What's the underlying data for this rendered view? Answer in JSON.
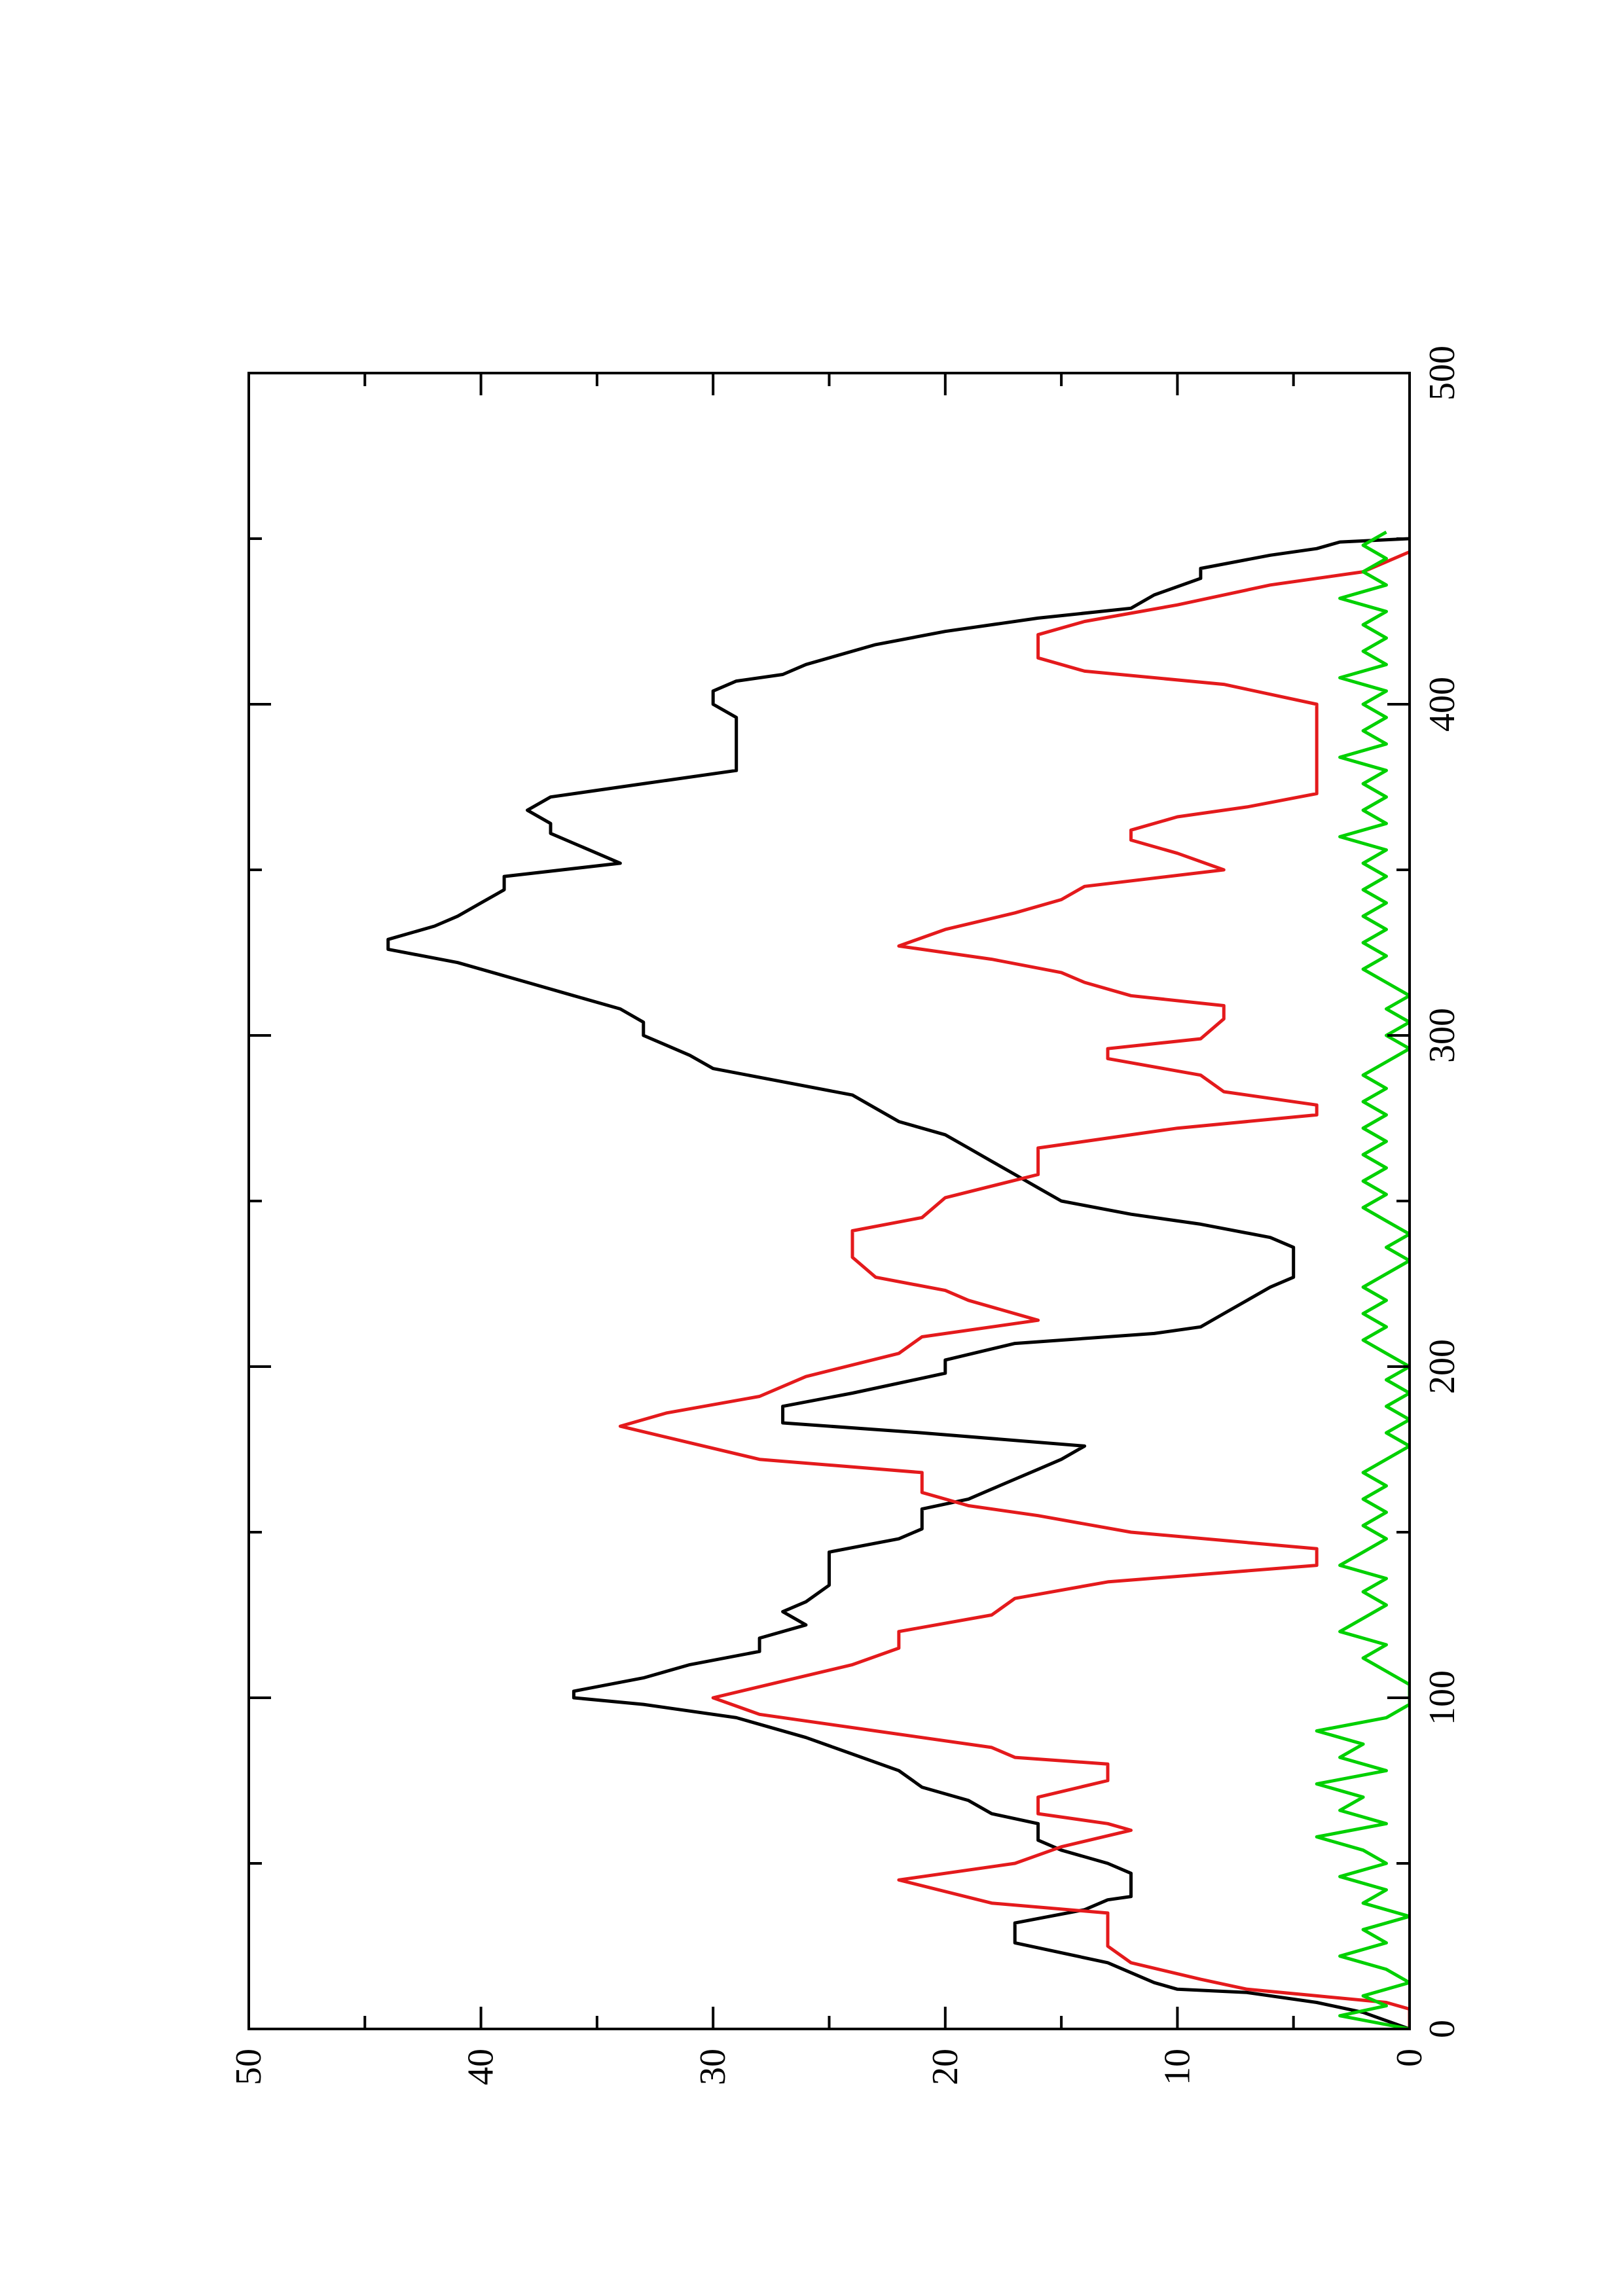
{
  "chart_data": {
    "type": "line",
    "orientation": "rotated-90-ccw",
    "title": "",
    "xlabel": "",
    "ylabel": "",
    "xlim": [
      0,
      500
    ],
    "ylim": [
      0,
      50
    ],
    "xticks_major": [
      0,
      100,
      200,
      300,
      400,
      500
    ],
    "xticks_minor": [
      50,
      150,
      250,
      350,
      450
    ],
    "yticks_major": [
      0,
      10,
      20,
      30,
      40,
      50
    ],
    "yticks_minor": [
      5,
      15,
      25,
      35,
      45
    ],
    "xtick_labels": [
      "0",
      "100",
      "200",
      "300",
      "400",
      "500"
    ],
    "ytick_labels": [
      "0",
      "10",
      "20",
      "30",
      "40",
      "50"
    ],
    "grid": false,
    "legend": "none",
    "series": [
      {
        "color": "#000000",
        "points": [
          [
            0,
            0
          ],
          [
            5,
            2
          ],
          [
            8,
            4
          ],
          [
            11,
            7
          ],
          [
            12,
            10
          ],
          [
            14,
            11
          ],
          [
            20,
            13
          ],
          [
            26,
            17
          ],
          [
            30,
            17
          ],
          [
            32,
            17
          ],
          [
            36,
            14
          ],
          [
            39,
            13
          ],
          [
            40,
            12
          ],
          [
            44,
            12
          ],
          [
            47,
            12
          ],
          [
            50,
            13
          ],
          [
            54,
            15
          ],
          [
            57,
            16
          ],
          [
            60,
            16
          ],
          [
            62,
            16
          ],
          [
            65,
            18
          ],
          [
            69,
            19
          ],
          [
            73,
            21
          ],
          [
            78,
            22
          ],
          [
            83,
            24
          ],
          [
            88,
            26
          ],
          [
            94,
            29
          ],
          [
            98,
            33
          ],
          [
            100,
            36
          ],
          [
            102,
            36
          ],
          [
            106,
            33
          ],
          [
            110,
            31
          ],
          [
            114,
            28
          ],
          [
            118,
            28
          ],
          [
            122,
            26
          ],
          [
            126,
            27
          ],
          [
            129,
            26
          ],
          [
            134,
            25
          ],
          [
            138,
            25
          ],
          [
            144,
            25
          ],
          [
            148,
            22
          ],
          [
            151,
            21
          ],
          [
            154,
            21
          ],
          [
            157,
            21
          ],
          [
            160,
            19
          ],
          [
            163,
            18
          ],
          [
            166,
            17
          ],
          [
            169,
            16
          ],
          [
            172,
            15
          ],
          [
            176,
            14
          ],
          [
            180,
            21
          ],
          [
            183,
            27
          ],
          [
            185,
            27
          ],
          [
            188,
            27
          ],
          [
            192,
            24
          ],
          [
            198,
            20
          ],
          [
            202,
            20
          ],
          [
            207,
            17
          ],
          [
            210,
            11
          ],
          [
            212,
            9
          ],
          [
            216,
            8
          ],
          [
            220,
            7
          ],
          [
            224,
            6
          ],
          [
            227,
            5
          ],
          [
            232,
            5
          ],
          [
            236,
            5
          ],
          [
            239,
            6
          ],
          [
            243,
            9
          ],
          [
            246,
            12
          ],
          [
            250,
            15
          ],
          [
            254,
            16
          ],
          [
            258,
            17
          ],
          [
            262,
            18
          ],
          [
            266,
            19
          ],
          [
            270,
            20
          ],
          [
            274,
            22
          ],
          [
            278,
            23
          ],
          [
            282,
            24
          ],
          [
            286,
            27
          ],
          [
            290,
            30
          ],
          [
            294,
            31
          ],
          [
            297,
            32
          ],
          [
            300,
            33
          ],
          [
            304,
            33
          ],
          [
            308,
            34
          ],
          [
            312,
            36
          ],
          [
            316,
            38
          ],
          [
            322,
            41
          ],
          [
            326,
            44
          ],
          [
            329,
            44
          ],
          [
            333,
            42
          ],
          [
            336,
            41
          ],
          [
            340,
            40
          ],
          [
            344,
            39
          ],
          [
            348,
            39
          ],
          [
            352,
            34
          ],
          [
            355,
            35
          ],
          [
            358,
            36
          ],
          [
            361,
            37
          ],
          [
            364,
            37
          ],
          [
            368,
            38
          ],
          [
            372,
            37
          ],
          [
            376,
            33
          ],
          [
            380,
            29
          ],
          [
            384,
            29
          ],
          [
            388,
            29
          ],
          [
            392,
            29
          ],
          [
            396,
            29
          ],
          [
            400,
            30
          ],
          [
            404,
            30
          ],
          [
            407,
            29
          ],
          [
            409,
            27
          ],
          [
            412,
            26
          ],
          [
            418,
            23
          ],
          [
            422,
            20
          ],
          [
            426,
            16
          ],
          [
            429,
            12
          ],
          [
            433,
            11
          ],
          [
            438,
            9
          ],
          [
            441,
            9
          ],
          [
            445,
            6
          ],
          [
            447,
            4
          ],
          [
            449,
            3
          ],
          [
            450,
            0
          ]
        ]
      },
      {
        "color": "#e41a1c",
        "points": [
          [
            0,
            0
          ],
          [
            6,
            0
          ],
          [
            8,
            1
          ],
          [
            10,
            4
          ],
          [
            12,
            7
          ],
          [
            15,
            9
          ],
          [
            20,
            12
          ],
          [
            25,
            13
          ],
          [
            30,
            13
          ],
          [
            35,
            13
          ],
          [
            38,
            18
          ],
          [
            45,
            22
          ],
          [
            50,
            17
          ],
          [
            55,
            15
          ],
          [
            60,
            12
          ],
          [
            62,
            13
          ],
          [
            65,
            16
          ],
          [
            70,
            16
          ],
          [
            75,
            13
          ],
          [
            80,
            13
          ],
          [
            82,
            17
          ],
          [
            85,
            18
          ],
          [
            90,
            23
          ],
          [
            95,
            28
          ],
          [
            100,
            30
          ],
          [
            105,
            27
          ],
          [
            110,
            24
          ],
          [
            115,
            22
          ],
          [
            120,
            22
          ],
          [
            125,
            18
          ],
          [
            130,
            17
          ],
          [
            135,
            13
          ],
          [
            140,
            4
          ],
          [
            145,
            4
          ],
          [
            150,
            12
          ],
          [
            155,
            16
          ],
          [
            158,
            19
          ],
          [
            162,
            21
          ],
          [
            168,
            21
          ],
          [
            172,
            28
          ],
          [
            182,
            34
          ],
          [
            186,
            32
          ],
          [
            191,
            28
          ],
          [
            197,
            26
          ],
          [
            204,
            22
          ],
          [
            209,
            21
          ],
          [
            214,
            16
          ],
          [
            220,
            19
          ],
          [
            223,
            20
          ],
          [
            227,
            23
          ],
          [
            233,
            24
          ],
          [
            241,
            24
          ],
          [
            245,
            21
          ],
          [
            251,
            20
          ],
          [
            258,
            16
          ],
          [
            266,
            16
          ],
          [
            272,
            10
          ],
          [
            276,
            4
          ],
          [
            279,
            4
          ],
          [
            283,
            8
          ],
          [
            288,
            9
          ],
          [
            293,
            13
          ],
          [
            296,
            13
          ],
          [
            299,
            9
          ],
          [
            305,
            8
          ],
          [
            309,
            8
          ],
          [
            312,
            12
          ],
          [
            316,
            14
          ],
          [
            319,
            15
          ],
          [
            323,
            18
          ],
          [
            327,
            22
          ],
          [
            332,
            20
          ],
          [
            337,
            17
          ],
          [
            341,
            15
          ],
          [
            345,
            14
          ],
          [
            350,
            8
          ],
          [
            355,
            10
          ],
          [
            359,
            12
          ],
          [
            362,
            12
          ],
          [
            366,
            10
          ],
          [
            369,
            7
          ],
          [
            373,
            4
          ],
          [
            381,
            4
          ],
          [
            400,
            4
          ],
          [
            406,
            8
          ],
          [
            410,
            14
          ],
          [
            414,
            16
          ],
          [
            421,
            16
          ],
          [
            425,
            14
          ],
          [
            430,
            10
          ],
          [
            436,
            6
          ],
          [
            440,
            2
          ],
          [
            446,
            0
          ]
        ]
      },
      {
        "color": "#00d000",
        "points": [
          [
            0,
            0
          ],
          [
            4,
            3
          ],
          [
            7,
            1
          ],
          [
            10,
            2
          ],
          [
            14,
            0
          ],
          [
            18,
            1
          ],
          [
            22,
            3
          ],
          [
            26,
            1
          ],
          [
            30,
            2
          ],
          [
            34,
            0
          ],
          [
            38,
            2
          ],
          [
            42,
            1
          ],
          [
            46,
            3
          ],
          [
            50,
            1
          ],
          [
            54,
            2
          ],
          [
            58,
            4
          ],
          [
            62,
            1
          ],
          [
            66,
            3
          ],
          [
            70,
            2
          ],
          [
            74,
            4
          ],
          [
            78,
            1
          ],
          [
            82,
            3
          ],
          [
            86,
            2
          ],
          [
            90,
            4
          ],
          [
            94,
            1
          ],
          [
            98,
            0
          ],
          [
            104,
            0
          ],
          [
            108,
            1
          ],
          [
            112,
            2
          ],
          [
            116,
            1
          ],
          [
            120,
            3
          ],
          [
            124,
            2
          ],
          [
            128,
            1
          ],
          [
            132,
            2
          ],
          [
            136,
            1
          ],
          [
            140,
            3
          ],
          [
            144,
            2
          ],
          [
            148,
            1
          ],
          [
            152,
            2
          ],
          [
            156,
            1
          ],
          [
            160,
            2
          ],
          [
            164,
            1
          ],
          [
            168,
            2
          ],
          [
            172,
            1
          ],
          [
            176,
            0
          ],
          [
            180,
            1
          ],
          [
            184,
            0
          ],
          [
            188,
            1
          ],
          [
            192,
            0
          ],
          [
            196,
            1
          ],
          [
            200,
            0
          ],
          [
            204,
            1
          ],
          [
            208,
            2
          ],
          [
            212,
            1
          ],
          [
            216,
            2
          ],
          [
            220,
            1
          ],
          [
            224,
            2
          ],
          [
            228,
            1
          ],
          [
            232,
            0
          ],
          [
            236,
            1
          ],
          [
            240,
            0
          ],
          [
            244,
            1
          ],
          [
            248,
            2
          ],
          [
            252,
            1
          ],
          [
            256,
            2
          ],
          [
            260,
            1
          ],
          [
            264,
            2
          ],
          [
            268,
            1
          ],
          [
            272,
            2
          ],
          [
            276,
            1
          ],
          [
            280,
            2
          ],
          [
            284,
            1
          ],
          [
            288,
            2
          ],
          [
            292,
            1
          ],
          [
            296,
            0
          ],
          [
            300,
            1
          ],
          [
            304,
            0
          ],
          [
            308,
            1
          ],
          [
            312,
            0
          ],
          [
            316,
            1
          ],
          [
            320,
            2
          ],
          [
            324,
            1
          ],
          [
            328,
            2
          ],
          [
            332,
            1
          ],
          [
            336,
            2
          ],
          [
            340,
            1
          ],
          [
            344,
            2
          ],
          [
            348,
            1
          ],
          [
            352,
            2
          ],
          [
            356,
            1
          ],
          [
            360,
            3
          ],
          [
            364,
            1
          ],
          [
            368,
            2
          ],
          [
            372,
            1
          ],
          [
            376,
            2
          ],
          [
            380,
            1
          ],
          [
            384,
            3
          ],
          [
            388,
            1
          ],
          [
            392,
            2
          ],
          [
            396,
            1
          ],
          [
            400,
            2
          ],
          [
            404,
            1
          ],
          [
            408,
            3
          ],
          [
            412,
            1
          ],
          [
            416,
            2
          ],
          [
            420,
            1
          ],
          [
            424,
            2
          ],
          [
            428,
            1
          ],
          [
            432,
            3
          ],
          [
            436,
            1
          ],
          [
            440,
            2
          ],
          [
            444,
            1
          ],
          [
            448,
            2
          ],
          [
            452,
            1
          ]
        ]
      }
    ]
  }
}
